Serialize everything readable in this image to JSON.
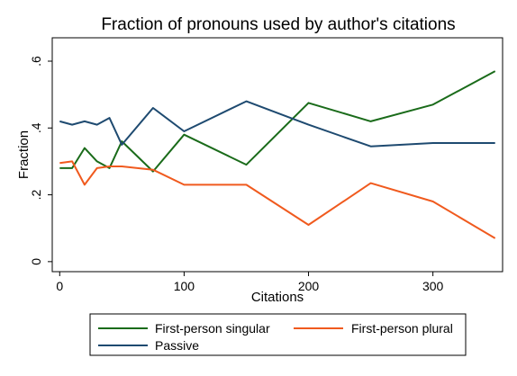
{
  "chart_data": {
    "type": "line",
    "title": "Fraction of pronouns used by author's citations",
    "xlabel": "Citations",
    "ylabel": "Fraction",
    "xlim": [
      -6,
      356
    ],
    "ylim": [
      -0.03,
      0.67
    ],
    "xticks": [
      0,
      100,
      200,
      300
    ],
    "xtick_labels": [
      "0",
      "100",
      "200",
      "300"
    ],
    "yticks": [
      0,
      0.2,
      0.4,
      0.6
    ],
    "ytick_labels": [
      "0",
      ".2",
      ".4",
      ".6"
    ],
    "grid": false,
    "legend_position": "bottom",
    "series": [
      {
        "name": "First-person singular",
        "color": "#1a6b1a",
        "x": [
          0,
          10,
          20,
          30,
          40,
          50,
          75,
          100,
          150,
          200,
          250,
          300,
          350
        ],
        "y": [
          0.28,
          0.28,
          0.34,
          0.3,
          0.28,
          0.36,
          0.27,
          0.38,
          0.29,
          0.475,
          0.42,
          0.47,
          0.57
        ]
      },
      {
        "name": "First-person plural",
        "color": "#f05a1e",
        "x": [
          0,
          10,
          20,
          30,
          40,
          50,
          75,
          100,
          150,
          200,
          250,
          300,
          350
        ],
        "y": [
          0.295,
          0.3,
          0.23,
          0.28,
          0.285,
          0.285,
          0.275,
          0.23,
          0.23,
          0.11,
          0.235,
          0.18,
          0.07
        ]
      },
      {
        "name": "Passive",
        "color": "#1e4a70",
        "x": [
          0,
          10,
          20,
          30,
          40,
          50,
          75,
          100,
          150,
          200,
          250,
          300,
          350
        ],
        "y": [
          0.42,
          0.41,
          0.42,
          0.41,
          0.43,
          0.35,
          0.46,
          0.39,
          0.48,
          0.41,
          0.345,
          0.355,
          0.355
        ]
      }
    ]
  }
}
